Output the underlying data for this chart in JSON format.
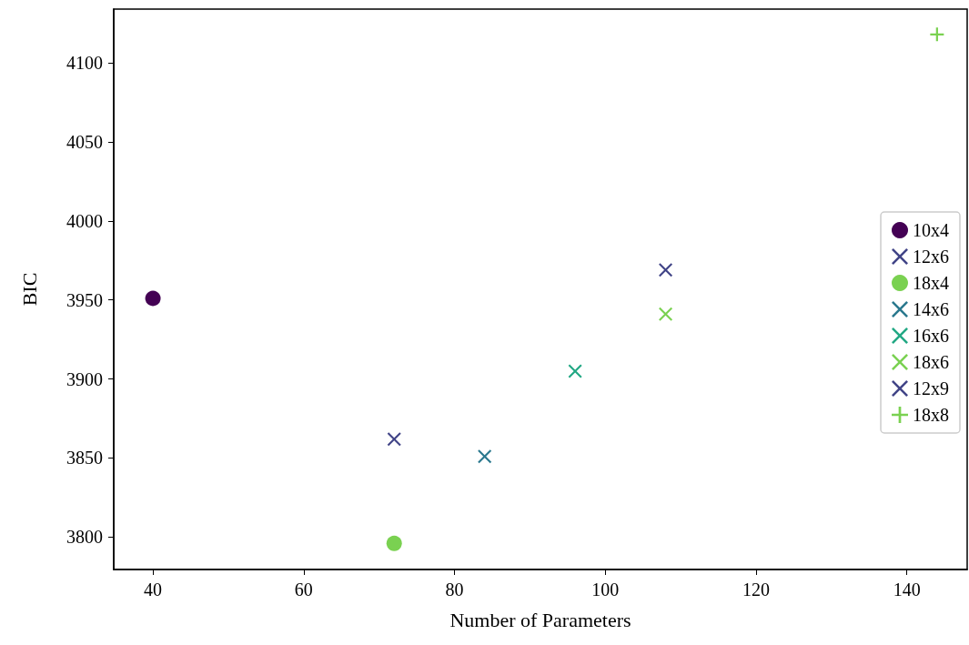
{
  "chart_data": {
    "type": "scatter",
    "xlabel": "Number of Parameters",
    "ylabel": "BIC",
    "xlim": [
      34.8,
      148
    ],
    "ylim": [
      3779.5,
      4134
    ],
    "xticks": [
      40,
      60,
      80,
      100,
      120,
      140
    ],
    "yticks": [
      3800,
      3850,
      3900,
      3950,
      4000,
      4050,
      4100
    ],
    "grid": false,
    "legend": "right",
    "series": [
      {
        "name": "10x4",
        "color": "#440154",
        "marker": "circle",
        "x": [
          40
        ],
        "values": [
          3951
        ]
      },
      {
        "name": "12x6",
        "color": "#414487",
        "marker": "cross",
        "x": [
          72
        ],
        "values": [
          3862
        ]
      },
      {
        "name": "18x4",
        "color": "#7ad151",
        "marker": "circle",
        "x": [
          72
        ],
        "values": [
          3796
        ]
      },
      {
        "name": "14x6",
        "color": "#2a788e",
        "marker": "cross",
        "x": [
          84
        ],
        "values": [
          3851
        ]
      },
      {
        "name": "16x6",
        "color": "#22a884",
        "marker": "cross",
        "x": [
          96
        ],
        "values": [
          3905
        ]
      },
      {
        "name": "18x6",
        "color": "#7ad151",
        "marker": "cross",
        "x": [
          108
        ],
        "values": [
          3941
        ]
      },
      {
        "name": "12x9",
        "color": "#414487",
        "marker": "cross",
        "x": [
          108
        ],
        "values": [
          3969
        ]
      },
      {
        "name": "18x8",
        "color": "#7ad151",
        "marker": "plus",
        "x": [
          144
        ],
        "values": [
          4118
        ]
      }
    ]
  }
}
